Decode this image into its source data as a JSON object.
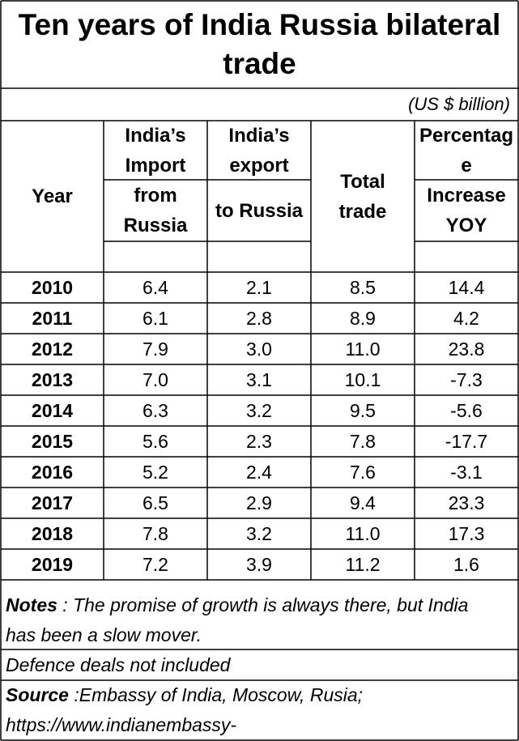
{
  "title": "Ten years of India Russia bilateral trade",
  "unit": "(US $ billion)",
  "headers": {
    "year": "Year",
    "import_1": "India’s",
    "import_2": "Import",
    "import_3": "from",
    "import_4": "Russia",
    "export_1": "India’s",
    "export_2": "export",
    "export_3": "to Russia",
    "total_1": "Total",
    "total_2": "trade",
    "pct_1": "Percentag",
    "pct_2": "e",
    "pct_3": "Increase",
    "pct_4": "YOY"
  },
  "rows": [
    {
      "year": "2010",
      "import": "6.4",
      "export": "2.1",
      "total": "8.5",
      "pct": "14.4"
    },
    {
      "year": "2011",
      "import": "6.1",
      "export": "2.8",
      "total": "8.9",
      "pct": "4.2"
    },
    {
      "year": "2012",
      "import": "7.9",
      "export": "3.0",
      "total": "11.0",
      "pct": "23.8"
    },
    {
      "year": "2013",
      "import": "7.0",
      "export": "3.1",
      "total": "10.1",
      "pct": "-7.3"
    },
    {
      "year": "2014",
      "import": "6.3",
      "export": "3.2",
      "total": "9.5",
      "pct": "-5.6"
    },
    {
      "year": "2015",
      "import": "5.6",
      "export": "2.3",
      "total": "7.8",
      "pct": "-17.7"
    },
    {
      "year": "2016",
      "import": "5.2",
      "export": "2.4",
      "total": "7.6",
      "pct": "-3.1"
    },
    {
      "year": "2017",
      "import": "6.5",
      "export": "2.9",
      "total": "9.4",
      "pct": "23.3"
    },
    {
      "year": "2018",
      "import": "7.8",
      "export": "3.2",
      "total": "11.0",
      "pct": "17.3"
    },
    {
      "year": "2019",
      "import": "7.2",
      "export": "3.9",
      "total": "11.2",
      "pct": "1.6"
    }
  ],
  "notes": {
    "label": "Notes",
    "text_1": " : The promise of growth is always there, but India",
    "text_2": "has been a slow mover.",
    "defence": "Defence deals not included"
  },
  "source": {
    "label": "Source",
    "text_1": " :Embassy of India, Moscow, Rusia;",
    "text_2": "https://www.indianembassy-"
  },
  "colors": {
    "notes_bg": "#ffd966",
    "source_bg": "#d9d9d9",
    "border": "#000000"
  }
}
